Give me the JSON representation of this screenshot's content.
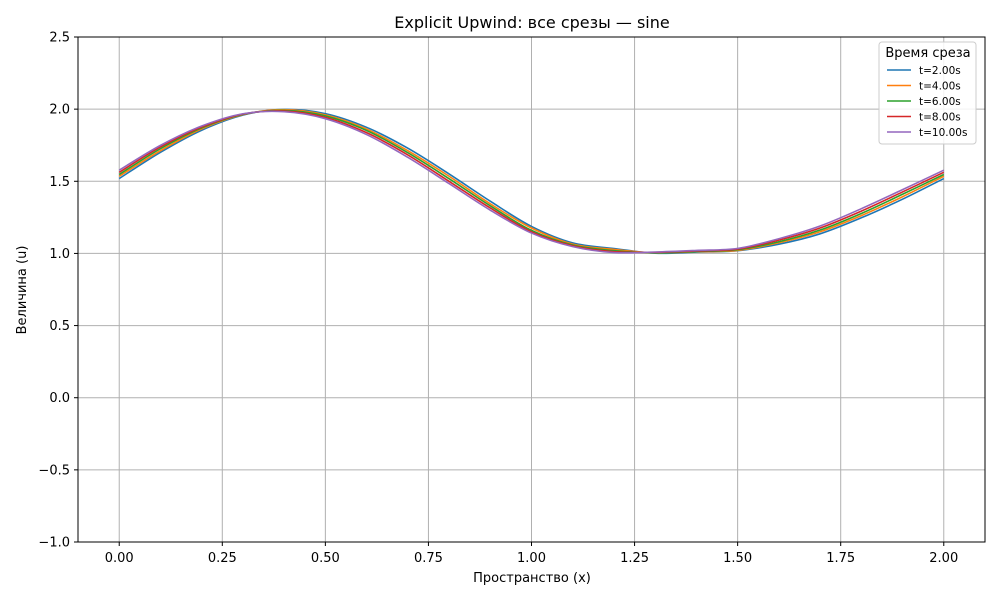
{
  "chart_data": {
    "type": "line",
    "title": "Explicit Upwind: все срезы — sine",
    "xlabel": "Пространство (x)",
    "ylabel": "Величина (u)",
    "xlim": [
      -0.1,
      2.1
    ],
    "ylim": [
      -1.0,
      2.5
    ],
    "xticks": [
      0.0,
      0.25,
      0.5,
      0.75,
      1.0,
      1.25,
      1.5,
      1.75,
      2.0
    ],
    "xtick_labels": [
      "0.00",
      "0.25",
      "0.50",
      "0.75",
      "1.00",
      "1.25",
      "1.50",
      "1.75",
      "2.00"
    ],
    "yticks": [
      -1.0,
      -0.5,
      0.0,
      0.5,
      1.0,
      1.5,
      2.0,
      2.5
    ],
    "ytick_labels": [
      "−1.0",
      "−0.5",
      "0.0",
      "0.5",
      "1.0",
      "1.5",
      "2.0",
      "2.5"
    ],
    "grid": true,
    "legend": {
      "title": "Время среза",
      "placement": "top-right"
    },
    "x": [
      0.0,
      0.1,
      0.2,
      0.3,
      0.4,
      0.5,
      0.6,
      0.7,
      0.8,
      0.9,
      1.0,
      1.1,
      1.2,
      1.3,
      1.4,
      1.5,
      1.6,
      1.7,
      1.8,
      1.9,
      2.0
    ],
    "series": [
      {
        "name": "t=2.00s",
        "color": "#1f77b4",
        "values": [
          1.519,
          1.701,
          1.854,
          1.959,
          1.998,
          1.969,
          1.874,
          1.729,
          1.551,
          1.362,
          1.187,
          1.073,
          1.034,
          1.002,
          1.009,
          1.019,
          1.064,
          1.136,
          1.247,
          1.376,
          1.519
        ]
      },
      {
        "name": "t=4.00s",
        "color": "#ff7f0e",
        "values": [
          1.535,
          1.712,
          1.863,
          1.962,
          1.996,
          1.96,
          1.862,
          1.712,
          1.535,
          1.344,
          1.176,
          1.064,
          1.028,
          1.004,
          1.012,
          1.021,
          1.074,
          1.15,
          1.262,
          1.393,
          1.535
        ]
      },
      {
        "name": "t=6.00s",
        "color": "#2ca02c",
        "values": [
          1.547,
          1.726,
          1.87,
          1.964,
          1.991,
          1.953,
          1.852,
          1.698,
          1.518,
          1.33,
          1.16,
          1.058,
          1.019,
          1.005,
          1.013,
          1.026,
          1.081,
          1.162,
          1.277,
          1.41,
          1.547
        ]
      },
      {
        "name": "t=8.00s",
        "color": "#d62728",
        "values": [
          1.562,
          1.738,
          1.876,
          1.966,
          1.987,
          1.943,
          1.837,
          1.683,
          1.5,
          1.315,
          1.15,
          1.053,
          1.012,
          1.008,
          1.017,
          1.03,
          1.092,
          1.176,
          1.293,
          1.426,
          1.562
        ]
      },
      {
        "name": "t=10.00s",
        "color": "#9467bd",
        "values": [
          1.577,
          1.749,
          1.883,
          1.968,
          1.982,
          1.934,
          1.824,
          1.666,
          1.484,
          1.3,
          1.141,
          1.047,
          1.006,
          1.01,
          1.021,
          1.035,
          1.102,
          1.19,
          1.31,
          1.442,
          1.577
        ]
      }
    ]
  }
}
